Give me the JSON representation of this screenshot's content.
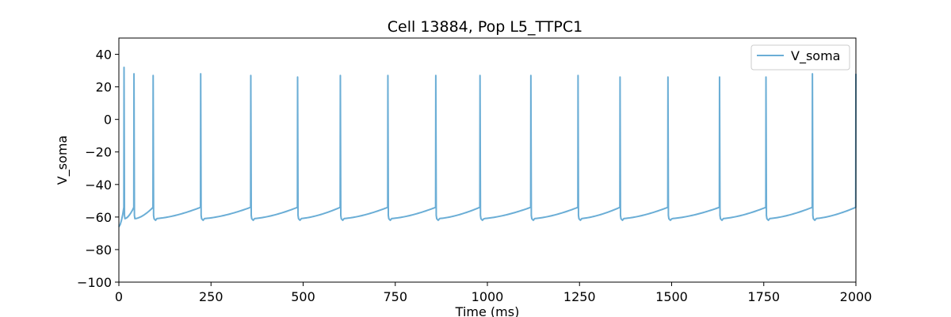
{
  "chart_data": {
    "type": "line",
    "title": "Cell 13884, Pop L5_TTPC1",
    "xlabel": "Time (ms)",
    "ylabel": "V_soma",
    "xlim": [
      0,
      2000
    ],
    "ylim": [
      -100,
      50
    ],
    "xticks": [
      0,
      250,
      500,
      750,
      1000,
      1250,
      1500,
      1750,
      2000
    ],
    "yticks": [
      -100,
      -80,
      -60,
      -40,
      -20,
      0,
      20,
      40
    ],
    "xtick_labels": [
      "0",
      "250",
      "500",
      "750",
      "1000",
      "1250",
      "1500",
      "1750",
      "2000"
    ],
    "ytick_labels": [
      "−100",
      "−80",
      "−60",
      "−40",
      "−20",
      "0",
      "20",
      "40"
    ],
    "legend": {
      "position": "top-right",
      "entries": [
        "V_soma"
      ]
    },
    "grid": false,
    "series": [
      {
        "name": "V_soma",
        "color": "#6baed6",
        "spike_times": [
          14,
          41,
          93,
          222,
          358,
          485,
          601,
          730,
          860,
          980,
          1118,
          1246,
          1360,
          1490,
          1630,
          1756,
          1882,
          2000
        ],
        "spike_peaks": [
          32,
          28,
          27,
          28,
          27,
          26,
          27,
          27,
          27,
          27,
          27,
          27,
          26,
          26,
          26,
          26,
          28,
          28
        ],
        "reset_potential": -61,
        "resting_start": -66,
        "pre_spike_threshold": -54
      }
    ]
  }
}
